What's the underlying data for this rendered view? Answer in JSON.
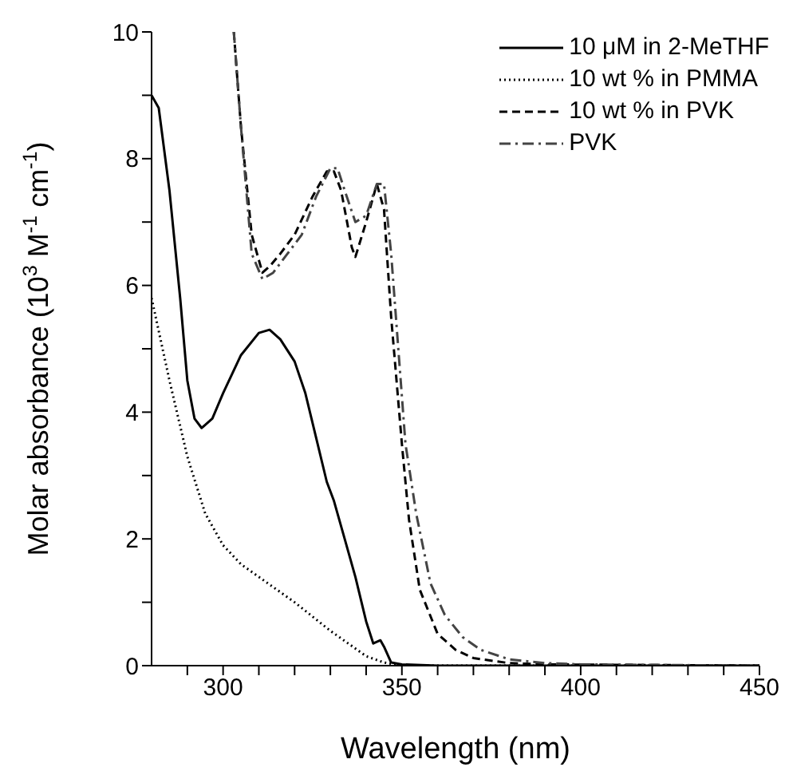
{
  "chart_data": {
    "type": "line",
    "xlabel": "Wavelength (nm)",
    "ylabel": "Molar absorbance (10$^{3}$ M$^{-1}$ cm$^{-1}$)",
    "xlim": [
      280,
      450
    ],
    "xticks": [
      {
        "value": 290,
        "label": null
      },
      300,
      {
        "value": 310,
        "label": null
      },
      {
        "value": 320,
        "label": null
      },
      {
        "value": 330,
        "label": null
      },
      {
        "value": 340,
        "label": null
      },
      350,
      {
        "value": 360,
        "label": null
      },
      {
        "value": 370,
        "label": null
      },
      {
        "value": 380,
        "label": null
      },
      {
        "value": 390,
        "label": null
      },
      400,
      {
        "value": 410,
        "label": null
      },
      {
        "value": 420,
        "label": null
      },
      {
        "value": 430,
        "label": null
      },
      {
        "value": 440,
        "label": null
      },
      450
    ],
    "ylim": [
      0,
      10
    ],
    "yticks": [
      0,
      {
        "value": 1,
        "label": null
      },
      2,
      {
        "value": 3,
        "label": null
      },
      4,
      {
        "value": 5,
        "label": null
      },
      6,
      {
        "value": 7,
        "label": null
      },
      8,
      {
        "value": 9,
        "label": null
      },
      10
    ],
    "legend": "top right",
    "grid": false,
    "series": [
      {
        "name": "10 μM in 2-MeTHF",
        "color": "#000000",
        "line_style": "solid",
        "x": [
          280,
          282,
          285,
          288,
          290,
          292,
          294,
          297,
          300,
          305,
          310,
          313,
          316,
          320,
          323,
          326,
          329,
          331,
          334,
          337,
          340,
          342,
          344,
          345,
          347,
          350,
          360,
          450
        ],
        "values": [
          9.0,
          8.8,
          7.5,
          5.8,
          4.5,
          3.9,
          3.75,
          3.9,
          4.3,
          4.9,
          5.25,
          5.3,
          5.15,
          4.8,
          4.3,
          3.6,
          2.9,
          2.6,
          2.0,
          1.4,
          0.7,
          0.35,
          0.4,
          0.3,
          0.05,
          0.02,
          0,
          0
        ]
      },
      {
        "name": "10 wt % in PMMA",
        "color": "#000000",
        "line_style": "dotted",
        "x": [
          280,
          285,
          290,
          295,
          300,
          305,
          310,
          320,
          330,
          340,
          345,
          350,
          450
        ],
        "values": [
          5.8,
          4.5,
          3.3,
          2.4,
          1.9,
          1.6,
          1.4,
          1.0,
          0.55,
          0.15,
          0.05,
          0,
          0
        ]
      },
      {
        "name": "10 wt % in PVK",
        "color": "#000000",
        "line_style": "dashed",
        "x": [
          303,
          305,
          308,
          311,
          313,
          316,
          320,
          325,
          329,
          331,
          333,
          336,
          337,
          340,
          343,
          345,
          347,
          350,
          352,
          355,
          360,
          365,
          370,
          380,
          390,
          450
        ],
        "values": [
          10,
          8.5,
          6.8,
          6.2,
          6.3,
          6.5,
          6.8,
          7.4,
          7.8,
          7.8,
          7.5,
          6.6,
          6.45,
          7.0,
          7.6,
          7.2,
          5.5,
          3.5,
          2.3,
          1.2,
          0.5,
          0.25,
          0.12,
          0.04,
          0.02,
          0
        ]
      },
      {
        "name": "PVK",
        "color": "#444444",
        "line_style": "dashdot",
        "x": [
          303,
          305,
          308,
          311,
          314,
          318,
          322,
          326,
          330,
          332,
          334,
          337,
          340,
          343,
          345,
          347,
          349,
          351,
          354,
          358,
          362,
          367,
          372,
          380,
          390,
          400,
          450
        ],
        "values": [
          10,
          8.5,
          6.5,
          6.1,
          6.2,
          6.5,
          6.8,
          7.4,
          7.85,
          7.85,
          7.5,
          7.0,
          7.1,
          7.6,
          7.6,
          6.5,
          5.0,
          3.5,
          2.4,
          1.3,
          0.8,
          0.45,
          0.25,
          0.1,
          0.04,
          0.02,
          0
        ]
      }
    ]
  }
}
